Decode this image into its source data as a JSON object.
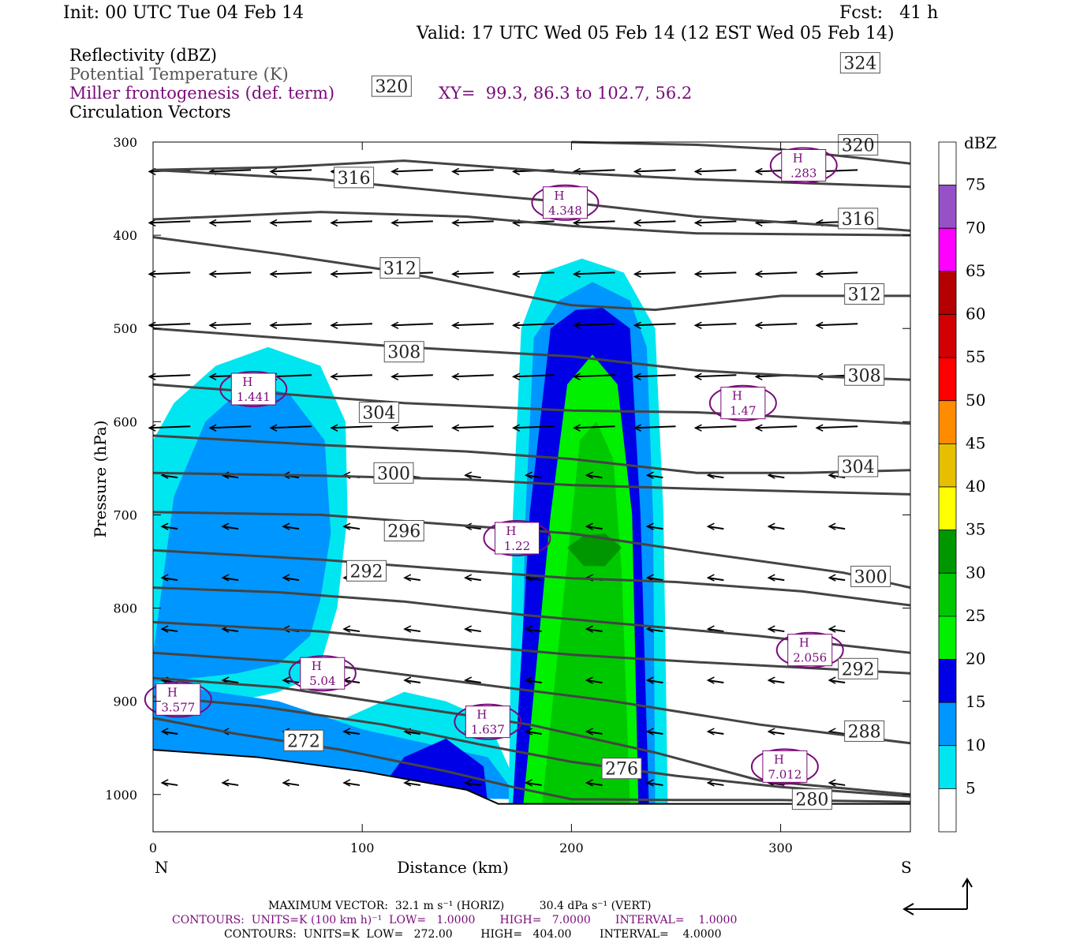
{
  "header": {
    "init": "Init: 00 UTC Tue 04 Feb 14",
    "fcst": "Fcst:   41 h",
    "valid": "Valid: 17 UTC Wed 05 Feb 14 (12 EST Wed 05 Feb 14)"
  },
  "legend": {
    "reflectivity": "Reflectivity (dBZ)",
    "theta": "Potential Temperature (K)",
    "miller": "Miller frontogenesis (def. term)",
    "xy": "XY=  99.3, 86.3 to 102.7, 56.2",
    "vectors": "Circulation Vectors"
  },
  "colors": {
    "theta": "#444444",
    "miller": "#7a0a7a",
    "dbz": [
      "#ffffff",
      "#00e6f0",
      "#0096ff",
      "#0000e6",
      "#00f000",
      "#00c800",
      "#009600",
      "#ffff00",
      "#e6c000",
      "#ff8c00",
      "#ff0000",
      "#d20000",
      "#b40000",
      "#ff00ff",
      "#9650c8",
      "#ffffff"
    ]
  },
  "chart_data": {
    "type": "cross-section",
    "xlabel": "Distance (km)",
    "ylabel": "Pressure (hPa)",
    "x_ticks": [
      0,
      100,
      200,
      300
    ],
    "y_ticks": [
      300,
      400,
      500,
      600,
      700,
      800,
      900,
      1000
    ],
    "xlim": [
      0,
      362
    ],
    "ylim": [
      1040,
      300
    ],
    "x_start_label": "N",
    "x_end_label": "S",
    "colorbar": {
      "unit": "dBZ",
      "levels": [
        5,
        10,
        15,
        20,
        25,
        30,
        35,
        40,
        45,
        50,
        55,
        60,
        65,
        70,
        75
      ]
    },
    "theta_contours": [
      {
        "value": 272,
        "points": [
          [
            0,
            918
          ],
          [
            40,
            935
          ],
          [
            90,
            952
          ],
          [
            140,
            975
          ],
          [
            172,
            992
          ],
          [
            200,
            1005
          ],
          [
            250,
            1006
          ],
          [
            300,
            1006
          ],
          [
            362,
            1008
          ]
        ],
        "label_at": [
          72,
          942
        ]
      },
      {
        "value": 276,
        "points": [
          [
            0,
            895
          ],
          [
            50,
            905
          ],
          [
            110,
            925
          ],
          [
            160,
            948
          ],
          [
            200,
            965
          ],
          [
            250,
            980
          ],
          [
            300,
            992
          ],
          [
            362,
            1002
          ]
        ],
        "label_at": [
          224,
          972
        ]
      },
      {
        "value": 280,
        "points": [
          [
            0,
            875
          ],
          [
            60,
            885
          ],
          [
            120,
            905
          ],
          [
            180,
            925
          ],
          [
            240,
            955
          ],
          [
            290,
            985
          ],
          [
            362,
            1000
          ]
        ],
        "label_at": [
          315,
          1005
        ]
      },
      {
        "value": 288,
        "points": [
          [
            0,
            848
          ],
          [
            80,
            860
          ],
          [
            150,
            880
          ],
          [
            220,
            900
          ],
          [
            290,
            925
          ],
          [
            362,
            945
          ]
        ],
        "label_at": [
          340,
          932
        ]
      },
      {
        "value": 292,
        "points": [
          [
            0,
            815
          ],
          [
            80,
            825
          ],
          [
            150,
            840
          ],
          [
            200,
            850
          ],
          [
            260,
            858
          ],
          [
            362,
            870
          ]
        ],
        "label_at": [
          337,
          865
        ]
      },
      {
        "value": 292,
        "points": [
          [
            0,
            778
          ],
          [
            60,
            783
          ],
          [
            120,
            793
          ],
          [
            180,
            808
          ],
          [
            230,
            818
          ],
          [
            290,
            830
          ],
          [
            362,
            848
          ]
        ],
        "label_at": [
          102,
          760
        ]
      },
      {
        "value": 296,
        "points": [
          [
            0,
            738
          ],
          [
            80,
            748
          ],
          [
            150,
            760
          ],
          [
            200,
            768
          ],
          [
            250,
            772
          ],
          [
            310,
            782
          ],
          [
            362,
            797
          ]
        ],
        "label_at": [
          120,
          717
        ]
      },
      {
        "value": 300,
        "points": [
          [
            0,
            697
          ],
          [
            80,
            700
          ],
          [
            140,
            710
          ],
          [
            200,
            720
          ],
          [
            260,
            740
          ],
          [
            330,
            762
          ],
          [
            362,
            778
          ]
        ],
        "label_at": [
          115,
          655
        ]
      },
      {
        "value": 304,
        "points": [
          [
            0,
            655
          ],
          [
            80,
            658
          ],
          [
            150,
            662
          ],
          [
            200,
            668
          ],
          [
            260,
            672
          ],
          [
            362,
            678
          ]
        ],
        "label_at": [
          108,
          590
        ]
      },
      {
        "value": 308,
        "points": [
          [
            0,
            615
          ],
          [
            80,
            625
          ],
          [
            150,
            632
          ],
          [
            200,
            640
          ],
          [
            260,
            655
          ],
          [
            310,
            655
          ],
          [
            362,
            652
          ]
        ],
        "label_at": [
          120,
          525
        ]
      },
      {
        "value": 312,
        "points": [
          [
            0,
            560
          ],
          [
            60,
            570
          ],
          [
            120,
            580
          ],
          [
            200,
            588
          ],
          [
            260,
            590
          ],
          [
            362,
            602
          ]
        ],
        "label_at": [
          118,
          435
        ]
      },
      {
        "value": 316,
        "points": [
          [
            0,
            500
          ],
          [
            60,
            510
          ],
          [
            120,
            520
          ],
          [
            200,
            530
          ],
          [
            260,
            545
          ],
          [
            300,
            550
          ],
          [
            362,
            555
          ]
        ],
        "label_at": [
          96,
          338
        ]
      },
      {
        "value": 320,
        "points": [
          [
            0,
            402
          ],
          [
            60,
            420
          ],
          [
            120,
            440
          ],
          [
            200,
            475
          ],
          [
            240,
            480
          ],
          [
            300,
            465
          ],
          [
            362,
            465
          ]
        ],
        "label_at": [
          114,
          240
        ]
      },
      {
        "value": 320,
        "points": [
          [
            0,
            383
          ],
          [
            80,
            375
          ],
          [
            150,
            380
          ],
          [
            200,
            390
          ],
          [
            260,
            398
          ],
          [
            362,
            400
          ]
        ],
        "label_at": [
          337,
          303
        ]
      },
      {
        "value": 316,
        "points": [
          [
            0,
            330
          ],
          [
            80,
            340
          ],
          [
            150,
            355
          ],
          [
            200,
            365
          ],
          [
            260,
            380
          ],
          [
            362,
            395
          ]
        ],
        "label_at": [
          337,
          382
        ]
      },
      {
        "value": 312,
        "points": [
          [
            0,
            330
          ],
          [
            60,
            327
          ],
          [
            120,
            320
          ],
          [
            200,
            333
          ],
          [
            260,
            340
          ],
          [
            362,
            348
          ]
        ],
        "label_at": [
          340,
          463
        ]
      },
      {
        "value": 324,
        "points": [
          [
            200,
            300
          ],
          [
            260,
            303
          ],
          [
            300,
            308
          ],
          [
            362,
            323
          ]
        ],
        "label_at": [
          338,
          215
        ]
      },
      {
        "value": 308,
        "points": [
          [
            0,
            0
          ],
          [
            0,
            0
          ]
        ],
        "label_at": [
          340,
          550
        ]
      },
      {
        "value": 304,
        "points": [
          [
            0,
            0
          ],
          [
            0,
            0
          ]
        ],
        "label_at": [
          337,
          648
        ]
      },
      {
        "value": 300,
        "points": [
          [
            0,
            0
          ],
          [
            0,
            0
          ]
        ],
        "label_at": [
          343,
          766
        ]
      }
    ],
    "frontogenesis_maxima": [
      {
        "label": "H",
        "value": ".283",
        "at": [
          311,
          325
        ]
      },
      {
        "label": "H",
        "value": "4.348",
        "at": [
          197,
          365
        ]
      },
      {
        "label": "H",
        "value": "1.47",
        "at": [
          282,
          580
        ]
      },
      {
        "label": "H",
        "value": "1.441",
        "at": [
          48,
          565
        ]
      },
      {
        "label": "H",
        "value": "1.22",
        "at": [
          174,
          725
        ]
      },
      {
        "label": "H",
        "value": "2.056",
        "at": [
          314,
          845
        ]
      },
      {
        "label": "H",
        "value": "5.04",
        "at": [
          81,
          870
        ]
      },
      {
        "label": "H",
        "value": "3.577",
        "at": [
          12,
          898
        ]
      },
      {
        "label": "H",
        "value": "1.637",
        "at": [
          160,
          922
        ]
      },
      {
        "label": "H",
        "value": "7.012",
        "at": [
          302,
          970
        ]
      }
    ],
    "footer": {
      "max_vector": "MAXIMUM VECTOR:  32.1 m s⁻¹ (HORIZ)          30.4 dPa s⁻¹ (VERT)",
      "contours_miller": "CONTOURS:  UNITS=K (100 km h)⁻¹  LOW=   1.0000       HIGH=   7.0000       INTERVAL=    1.0000",
      "contours_theta": "CONTOURS:  UNITS=K  LOW=   272.00        HIGH=   404.00        INTERVAL=    4.0000"
    }
  }
}
